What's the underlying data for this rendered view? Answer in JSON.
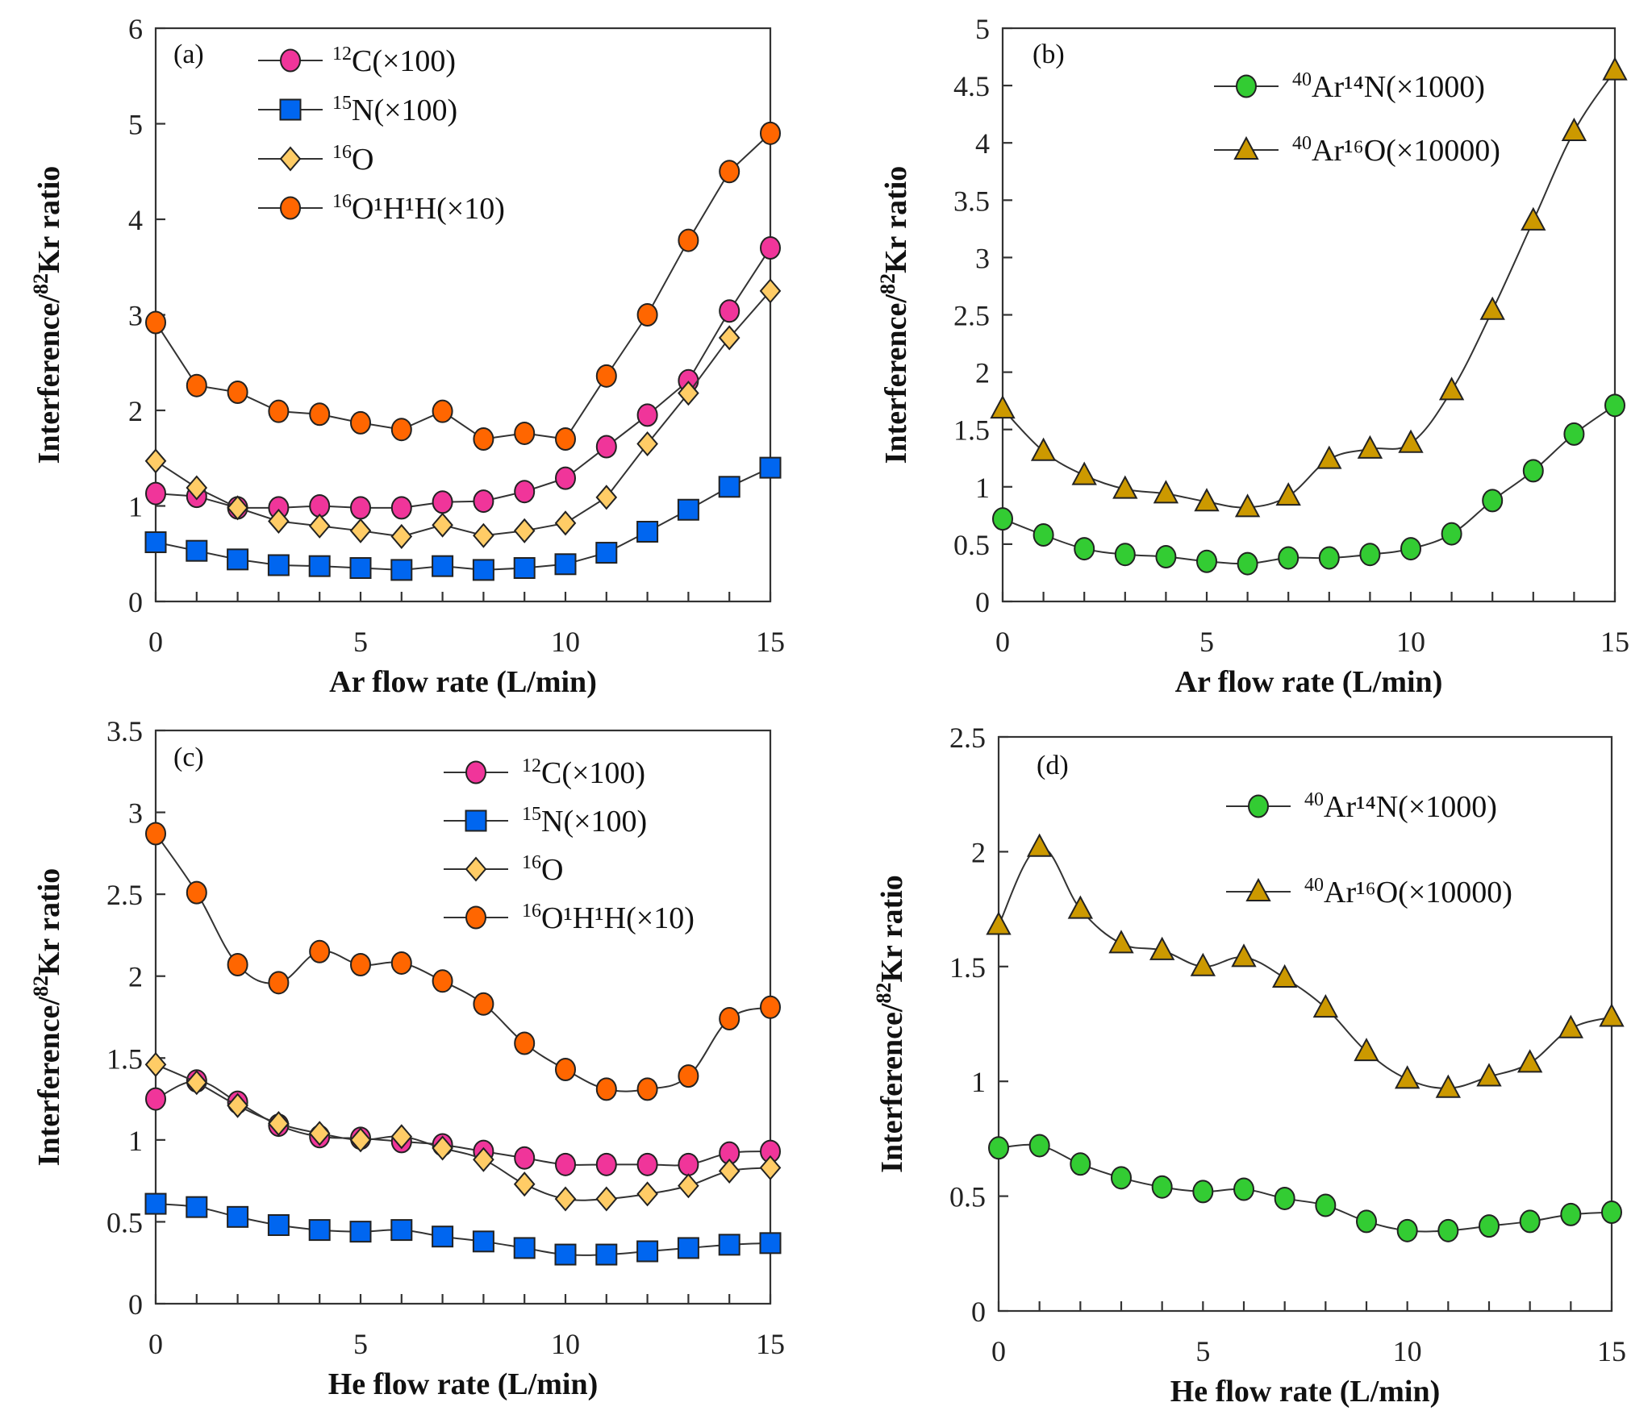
{
  "chart_data": [
    {
      "panel": "(a)",
      "type": "line",
      "xlabel": "Ar flow rate (L/min)",
      "ylabel": "Interference/82Kr ratio",
      "xlim": [
        0,
        15
      ],
      "ylim": [
        0,
        6
      ],
      "xticks": [
        "0",
        "5",
        "10",
        "15"
      ],
      "yticks": [
        "0",
        "1",
        "2",
        "3",
        "4",
        "5",
        "6"
      ],
      "legend_position": "top-left",
      "smooth": false,
      "x": [
        0,
        1,
        2,
        3,
        4,
        5,
        6,
        7,
        8,
        9,
        10,
        11,
        12,
        13,
        14,
        15
      ],
      "series": [
        {
          "name": "12C(×100)",
          "iso": "12",
          "label": "C(×100)",
          "marker": "circle",
          "color": "#F0359A",
          "values": [
            1.13,
            1.1,
            0.98,
            0.98,
            1.0,
            0.98,
            0.98,
            1.04,
            1.05,
            1.15,
            1.29,
            1.62,
            1.95,
            2.31,
            3.04,
            3.7
          ]
        },
        {
          "name": "15N(×100)",
          "iso": "15",
          "label": "N(×100)",
          "marker": "square",
          "color": "#0066F0",
          "values": [
            0.62,
            0.53,
            0.44,
            0.38,
            0.37,
            0.35,
            0.33,
            0.37,
            0.33,
            0.35,
            0.39,
            0.51,
            0.73,
            0.96,
            1.2,
            1.4
          ]
        },
        {
          "name": "16O",
          "iso": "16",
          "label": "O",
          "marker": "diamond",
          "color": "#FFCC66",
          "values": [
            1.47,
            1.19,
            0.98,
            0.84,
            0.79,
            0.74,
            0.68,
            0.8,
            0.69,
            0.74,
            0.82,
            1.09,
            1.65,
            2.18,
            2.76,
            3.25
          ]
        },
        {
          "name": "16O1H1H(×10)",
          "iso": "16",
          "label": "O¹H¹H(×10)",
          "marker": "circle",
          "color": "#FF6600",
          "values": [
            2.92,
            2.26,
            2.19,
            1.99,
            1.96,
            1.87,
            1.8,
            1.99,
            1.7,
            1.76,
            1.7,
            2.36,
            3.0,
            3.78,
            4.5,
            4.9
          ]
        }
      ]
    },
    {
      "panel": "(b)",
      "type": "line",
      "xlabel": "Ar flow rate (L/min)",
      "ylabel": "Interference/82Kr ratio",
      "xlim": [
        0,
        15
      ],
      "ylim": [
        0,
        5
      ],
      "xticks": [
        "0",
        "5",
        "10",
        "15"
      ],
      "yticks": [
        "0",
        "0.5",
        "1",
        "1.5",
        "2",
        "2.5",
        "3",
        "3.5",
        "4",
        "4.5",
        "5"
      ],
      "legend_position": "top-center",
      "smooth": true,
      "x": [
        0,
        1,
        2,
        3,
        4,
        5,
        6,
        7,
        8,
        9,
        10,
        11,
        12,
        13,
        14,
        15
      ],
      "series": [
        {
          "name": "40Ar14N(×1000)",
          "iso": "40",
          "label": "Ar¹⁴N(×1000)",
          "marker": "circle",
          "color": "#33CC33",
          "values": [
            0.72,
            0.58,
            0.46,
            0.41,
            0.39,
            0.35,
            0.33,
            0.38,
            0.38,
            0.41,
            0.46,
            0.59,
            0.88,
            1.14,
            1.46,
            1.71
          ]
        },
        {
          "name": "40Ar16O(×10000)",
          "iso": "40",
          "label": "Ar¹⁶O(×10000)",
          "marker": "triangle",
          "color": "#CC9900",
          "values": [
            1.68,
            1.31,
            1.1,
            0.98,
            0.94,
            0.87,
            0.82,
            0.92,
            1.24,
            1.33,
            1.38,
            1.84,
            2.54,
            3.32,
            4.1,
            4.63
          ]
        }
      ]
    },
    {
      "panel": "(c)",
      "type": "line",
      "xlabel": "He flow rate (L/min)",
      "ylabel": "Interference/82Kr ratio",
      "xlim": [
        0,
        15
      ],
      "ylim": [
        0,
        3.5
      ],
      "xticks": [
        "0",
        "5",
        "10",
        "15"
      ],
      "yticks": [
        "0",
        "0.5",
        "1",
        "1.5",
        "2",
        "2.5",
        "3",
        "3.5"
      ],
      "legend_position": "top-right",
      "smooth": true,
      "x": [
        0,
        1,
        2,
        3,
        4,
        5,
        6,
        7,
        8,
        9,
        10,
        11,
        12,
        13,
        14,
        15
      ],
      "series": [
        {
          "name": "12C(×100)",
          "iso": "12",
          "label": "C(×100)",
          "marker": "circle",
          "color": "#F0359A",
          "values": [
            1.25,
            1.36,
            1.23,
            1.09,
            1.02,
            1.01,
            0.99,
            0.97,
            0.93,
            0.89,
            0.85,
            0.85,
            0.85,
            0.85,
            0.92,
            0.93
          ]
        },
        {
          "name": "15N(×100)",
          "iso": "15",
          "label": "N(×100)",
          "marker": "square",
          "color": "#0066F0",
          "values": [
            0.61,
            0.59,
            0.53,
            0.48,
            0.45,
            0.44,
            0.45,
            0.41,
            0.38,
            0.34,
            0.3,
            0.3,
            0.32,
            0.34,
            0.36,
            0.37
          ]
        },
        {
          "name": "16O",
          "iso": "16",
          "label": "O",
          "marker": "diamond",
          "color": "#FFCC66",
          "values": [
            1.46,
            1.35,
            1.21,
            1.1,
            1.04,
            1.0,
            1.02,
            0.95,
            0.88,
            0.73,
            0.64,
            0.64,
            0.67,
            0.72,
            0.81,
            0.83
          ]
        },
        {
          "name": "16O1H1H(×10)",
          "iso": "16",
          "label": "O¹H¹H(×10)",
          "marker": "circle",
          "color": "#FF6600",
          "values": [
            2.87,
            2.51,
            2.07,
            1.96,
            2.15,
            2.07,
            2.08,
            1.97,
            1.83,
            1.59,
            1.43,
            1.31,
            1.31,
            1.39,
            1.74,
            1.81
          ]
        }
      ]
    },
    {
      "panel": "(d)",
      "type": "line",
      "xlabel": "He flow rate (L/min)",
      "ylabel": "Interference/82Kr ratio",
      "xlim": [
        0,
        15
      ],
      "ylim": [
        0,
        2.5
      ],
      "xticks": [
        "0",
        "5",
        "10",
        "15"
      ],
      "yticks": [
        "0",
        "0.5",
        "1",
        "1.5",
        "2",
        "2.5"
      ],
      "legend_position": "top-center",
      "smooth": true,
      "x": [
        0,
        1,
        2,
        3,
        4,
        5,
        6,
        7,
        8,
        9,
        10,
        11,
        12,
        13,
        14,
        15
      ],
      "series": [
        {
          "name": "40Ar14N(×1000)",
          "iso": "40",
          "label": "Ar¹⁴N(×1000)",
          "marker": "circle",
          "color": "#33CC33",
          "values": [
            0.71,
            0.72,
            0.64,
            0.58,
            0.54,
            0.52,
            0.53,
            0.49,
            0.46,
            0.39,
            0.35,
            0.35,
            0.37,
            0.39,
            0.42,
            0.43
          ]
        },
        {
          "name": "40Ar16O(×10000)",
          "iso": "40",
          "label": "Ar¹⁶O(×10000)",
          "marker": "triangle",
          "color": "#CC9900",
          "values": [
            1.68,
            2.02,
            1.75,
            1.6,
            1.57,
            1.5,
            1.54,
            1.45,
            1.32,
            1.13,
            1.01,
            0.97,
            1.02,
            1.08,
            1.23,
            1.28
          ]
        }
      ]
    }
  ],
  "ylabel_parts": {
    "pre": "Interference/",
    "sup": "82",
    "post": "Kr ratio"
  }
}
